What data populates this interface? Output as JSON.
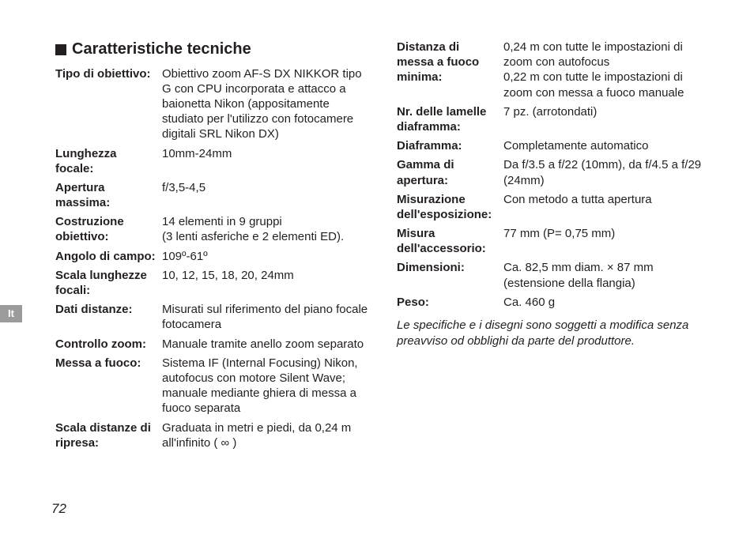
{
  "language_tab": "It",
  "page_number": "72",
  "section_title": "Caratteristiche tecniche",
  "left_col": [
    {
      "label": "Tipo di obiettivo:",
      "value": "Obiettivo zoom AF-S DX NIKKOR tipo G con CPU incorporata e attacco a baionetta Nikon (appositamente studiato per l'utilizzo con fotocamere digitali SRL Nikon DX)"
    },
    {
      "label": "Lunghezza focale:",
      "value": "10mm-24mm"
    },
    {
      "label": "Apertura massima:",
      "value": "f/3,5-4,5"
    },
    {
      "label": "Costruzione obiettivo:",
      "value": "14 elementi in 9 gruppi\n(3 lenti asferiche e 2 elementi ED)."
    },
    {
      "label": "Angolo di campo:",
      "value": "109º-61º"
    },
    {
      "label": "Scala lunghezze focali:",
      "value": "10, 12, 15, 18, 20, 24mm"
    },
    {
      "label": "Dati distanze:",
      "value": "Misurati sul riferimento del piano focale fotocamera"
    },
    {
      "label": "Controllo zoom:",
      "value": "Manuale tramite anello zoom separato"
    },
    {
      "label": "Messa a fuoco:",
      "value": "Sistema IF (Internal Focusing) Nikon, autofocus con motore Silent Wave; manuale mediante ghiera di messa a fuoco separata"
    },
    {
      "label": "Scala distanze di ripresa:",
      "value": "Graduata in metri e piedi, da 0,24 m all'infinito ( ∞ )"
    }
  ],
  "right_col": [
    {
      "label": "Distanza di messa a fuoco minima:",
      "value": "0,24 m con tutte le impostazioni di zoom con autofocus\n0,22 m con tutte le impostazioni di zoom con messa a fuoco manuale"
    },
    {
      "label": "Nr. delle lamelle diaframma:",
      "value": "7 pz. (arrotondati)"
    },
    {
      "label": "Diaframma:",
      "value": "Completamente automatico"
    },
    {
      "label": "Gamma di apertura:",
      "value": "Da f/3.5 a f/22 (10mm), da f/4.5 a f/29 (24mm)"
    },
    {
      "label": "Misurazione dell'esposizione:",
      "value": "Con metodo a tutta apertura"
    },
    {
      "label": "Misura dell'accessorio:",
      "value": "77 mm (P= 0,75 mm)"
    },
    {
      "label": "Dimensioni:",
      "value": "Ca. 82,5 mm diam. × 87 mm (estensione della flangia)"
    },
    {
      "label": "Peso:",
      "value": "Ca. 460 g"
    }
  ],
  "footnote": "Le specifiche e i disegni sono soggetti a modifica senza preavviso od obblighi da parte del produttore."
}
